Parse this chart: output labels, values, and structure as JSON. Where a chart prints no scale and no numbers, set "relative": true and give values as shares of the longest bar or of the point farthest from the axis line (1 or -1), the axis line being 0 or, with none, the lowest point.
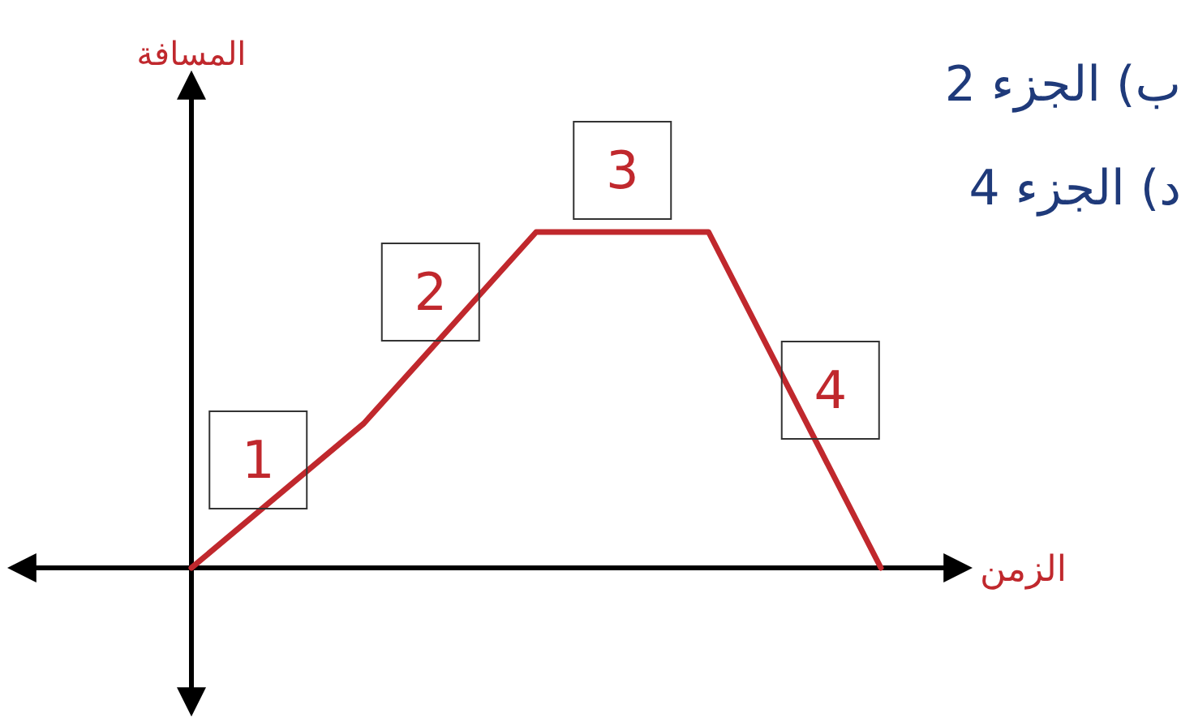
{
  "chart_data": {
    "type": "line",
    "relative": true,
    "xlabel": "الزمن",
    "ylabel": "المسافة",
    "categories": [
      null,
      null,
      null,
      null,
      null
    ],
    "series": [
      {
        "color": "#c0282d",
        "values": [
          0,
          0.43,
          1,
          1,
          0
        ]
      }
    ],
    "annotations": [
      "1",
      "2",
      "3",
      "4",
      "ب)  الجزء 2",
      "د)  الجزء 4"
    ],
    "marker": "none",
    "line_style": "solid"
  }
}
